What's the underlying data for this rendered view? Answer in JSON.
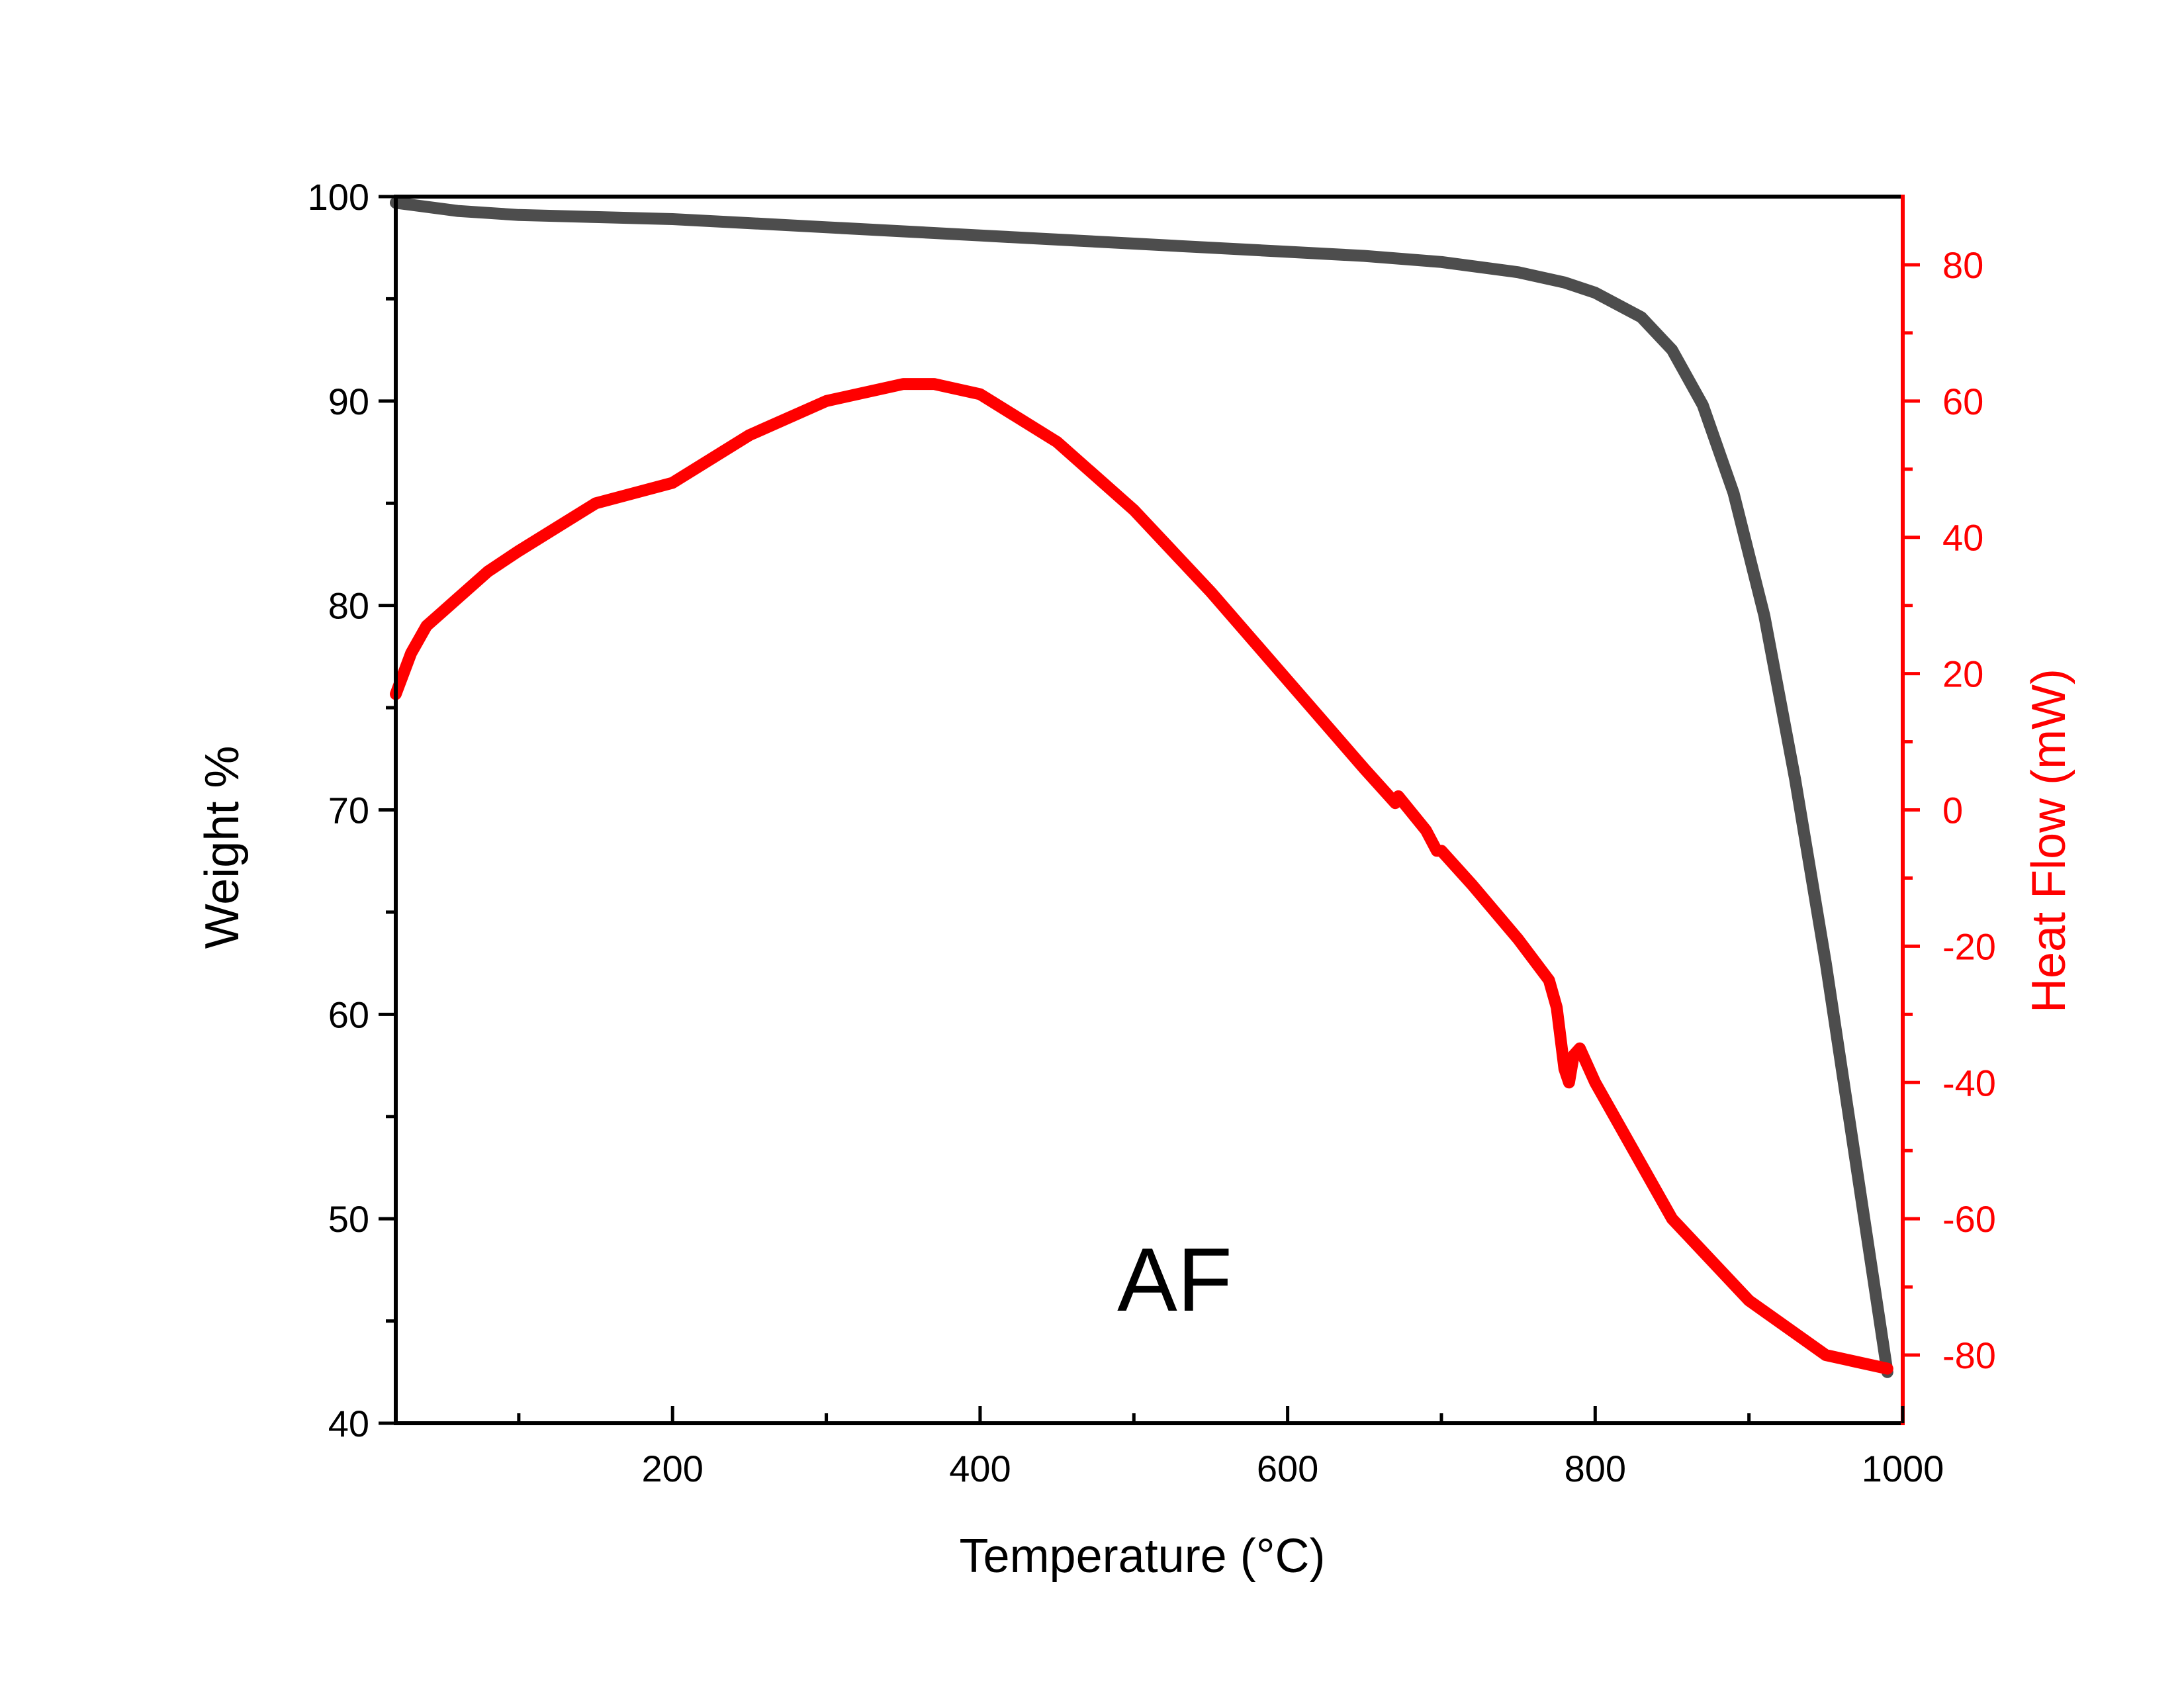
{
  "chart_data": {
    "type": "line",
    "annotation": "AF",
    "x_axis": {
      "label": "Temperature (°C)",
      "range": [
        20,
        1000
      ],
      "ticks": [
        200,
        400,
        600,
        800,
        1000
      ],
      "minor_ticks": [
        100,
        300,
        500,
        700,
        900
      ]
    },
    "y_axis_left": {
      "label": "Weight %",
      "range": [
        40,
        100
      ],
      "ticks": [
        40,
        50,
        60,
        70,
        80,
        90,
        100
      ],
      "minor_ticks": [
        45,
        55,
        65,
        75,
        85,
        95
      ],
      "color": "#000000"
    },
    "y_axis_right": {
      "label": "Heat Flow (mW)",
      "range": [
        -90,
        90
      ],
      "ticks": [
        -80,
        -60,
        -40,
        -20,
        0,
        20,
        40,
        60,
        80
      ],
      "tick_labels": [
        "-80",
        "-60",
        "-40",
        "-20",
        "0",
        "20",
        "40",
        "60",
        "80"
      ],
      "minor_ticks": [
        -70,
        -50,
        -30,
        -10,
        10,
        30,
        50,
        70
      ],
      "color": "#ff0000"
    },
    "series": [
      {
        "axis": "left",
        "color": "#4d4d4d",
        "x": [
          20,
          40,
          60,
          80,
          100,
          150,
          200,
          250,
          300,
          350,
          400,
          450,
          500,
          550,
          600,
          650,
          700,
          750,
          780,
          800,
          830,
          850,
          870,
          890,
          910,
          930,
          950,
          970,
          990
        ],
        "y": [
          99.7,
          99.5,
          99.3,
          99.2,
          99.1,
          99.0,
          98.9,
          98.7,
          98.5,
          98.3,
          98.1,
          97.9,
          97.7,
          97.5,
          97.3,
          97.1,
          96.8,
          96.3,
          95.8,
          95.3,
          94.1,
          92.5,
          89.8,
          85.5,
          79.5,
          71.5,
          62.5,
          52.5,
          42.5
        ]
      },
      {
        "axis": "right",
        "color": "#ff0000",
        "x": [
          20,
          30,
          40,
          50,
          60,
          80,
          100,
          150,
          200,
          250,
          300,
          350,
          370,
          400,
          450,
          500,
          550,
          600,
          650,
          670,
          672,
          690,
          697,
          700,
          720,
          750,
          770,
          775,
          780,
          783,
          786,
          790,
          800,
          850,
          900,
          950,
          990
        ],
        "y": [
          17,
          23,
          27,
          29,
          31,
          35,
          38,
          45,
          48,
          55,
          60,
          62.5,
          62.5,
          61,
          54,
          44,
          32,
          19,
          6,
          1,
          2,
          -3,
          -6,
          -6,
          -11,
          -19,
          -25,
          -29,
          -38,
          -40,
          -36,
          -35,
          -40,
          -60,
          -72,
          -80,
          -82
        ]
      }
    ]
  }
}
